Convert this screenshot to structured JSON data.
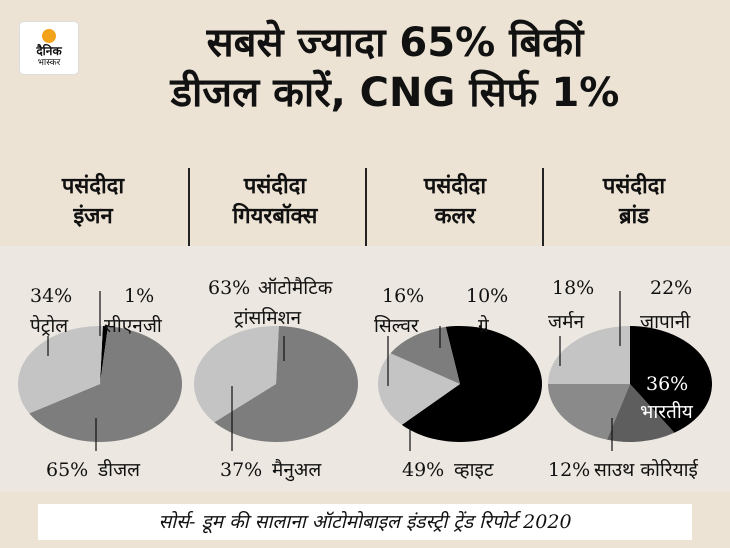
{
  "logo": {
    "line1": "दैनिक",
    "line2": "भास्कर"
  },
  "headline": {
    "line1": "सबसे ज्यादा 65% बिकीं",
    "line2": "डीजल कारें, CNG सिर्फ 1%"
  },
  "footer": {
    "source": "सोर्स- डूम की सालाना ऑटोमोबाइल इंडस्ट्री ट्रेंड रिपोर्ट 2020"
  },
  "colors": {
    "light": "#c2c2c2",
    "mid": "#7d7d7d",
    "dark": "#5e5e5e",
    "black": "#000000"
  },
  "chart_data": [
    {
      "type": "pie",
      "title_line1": "पसंदीदा",
      "title_line2": "इंजन",
      "slices": [
        {
          "label": "डीजल",
          "value": 65,
          "pct_text": "65%",
          "color": "#7d7d7d"
        },
        {
          "label": "पेट्रोल",
          "value": 34,
          "pct_text": "34%",
          "color": "#c4c4c4"
        },
        {
          "label": "सीएनजी",
          "value": 1,
          "pct_text": "1%",
          "color": "#000000"
        }
      ]
    },
    {
      "type": "pie",
      "title_line1": "पसंदीदा",
      "title_line2": "गियरबॉक्स",
      "slices": [
        {
          "label": "ऑटोमैटिक ट्रांसमिशन",
          "label_line1": "ऑटोमैटिक",
          "label_line2": "ट्रांसमिशन",
          "value": 63,
          "pct_text": "63%",
          "color": "#7d7d7d"
        },
        {
          "label": "मैनुअल",
          "value": 37,
          "pct_text": "37%",
          "color": "#c4c4c4"
        }
      ]
    },
    {
      "type": "pie",
      "title_line1": "पसंदीदा",
      "title_line2": "कलर",
      "slices": [
        {
          "label": "व्हाइट",
          "value": 49,
          "pct_text": "49%",
          "color": "#000000"
        },
        {
          "label": "सिल्वर",
          "value": 16,
          "pct_text": "16%",
          "color": "#c4c4c4"
        },
        {
          "label": "ग्रे",
          "value": 10,
          "pct_text": "10%",
          "color": "#7d7d7d"
        }
      ]
    },
    {
      "type": "pie",
      "title_line1": "पसंदीदा",
      "title_line2": "ब्रांड",
      "slices": [
        {
          "label": "भारतीय",
          "value": 36,
          "pct_text": "36%",
          "color": "#000000"
        },
        {
          "label": "साउथ कोरियाई",
          "value": 12,
          "pct_text": "12%",
          "color": "#5e5e5e"
        },
        {
          "label": "जर्मन",
          "value": 18,
          "pct_text": "18%",
          "color": "#8a8a8a"
        },
        {
          "label": "जापानी",
          "value": 22,
          "pct_text": "22%",
          "color": "#c4c4c4"
        }
      ]
    }
  ]
}
